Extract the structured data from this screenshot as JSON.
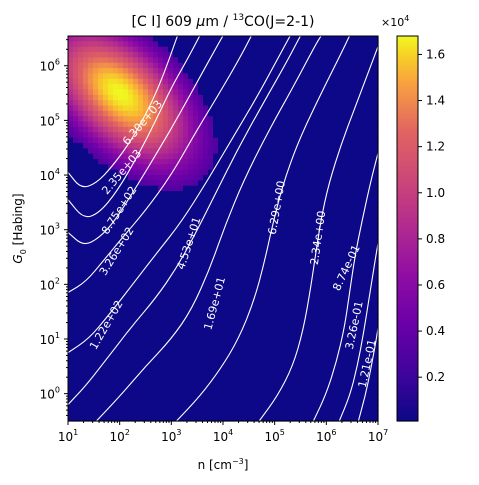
{
  "chart_data": {
    "type": "heatmap",
    "title_parts": [
      "[C I] 609 ",
      "μ",
      "m / ",
      "13",
      "CO(J=2-1)"
    ],
    "xlabel_parts": [
      "n [cm",
      "−3",
      "]"
    ],
    "ylabel_parts": [
      "G",
      "0",
      " [Habing]"
    ],
    "x_scale": "log",
    "y_scale": "log",
    "xlim": [
      10,
      10000000
    ],
    "ylim": [
      0.316,
      3500000
    ],
    "x_ticks": [
      {
        "value": 10,
        "base": "10",
        "exp": "1"
      },
      {
        "value": 100,
        "base": "10",
        "exp": "2"
      },
      {
        "value": 1000,
        "base": "10",
        "exp": "3"
      },
      {
        "value": 10000,
        "base": "10",
        "exp": "4"
      },
      {
        "value": 100000,
        "base": "10",
        "exp": "5"
      },
      {
        "value": 1000000,
        "base": "10",
        "exp": "6"
      },
      {
        "value": 10000000,
        "base": "10",
        "exp": "7"
      }
    ],
    "y_ticks": [
      {
        "value": 1,
        "base": "10",
        "exp": "0"
      },
      {
        "value": 10,
        "base": "10",
        "exp": "1"
      },
      {
        "value": 100,
        "base": "10",
        "exp": "2"
      },
      {
        "value": 1000,
        "base": "10",
        "exp": "3"
      },
      {
        "value": 10000,
        "base": "10",
        "exp": "4"
      },
      {
        "value": 100000,
        "base": "10",
        "exp": "5"
      },
      {
        "value": 1000000,
        "base": "10",
        "exp": "6"
      }
    ],
    "colormap": "plasma",
    "colorbar": {
      "range": [
        0.01,
        1.68
      ],
      "multiplier_parts": [
        "×10",
        "4"
      ],
      "ticks": [
        {
          "value": 0.2,
          "label": "0.2"
        },
        {
          "value": 0.4,
          "label": "0.4"
        },
        {
          "value": 0.6,
          "label": "0.6"
        },
        {
          "value": 0.8,
          "label": "0.8"
        },
        {
          "value": 1.0,
          "label": "1.0"
        },
        {
          "value": 1.2,
          "label": "1.2"
        },
        {
          "value": 1.4,
          "label": "1.4"
        },
        {
          "value": 1.6,
          "label": "1.6"
        }
      ]
    },
    "peak": {
      "log_n": 2.0,
      "log_g0": 5.5,
      "value": 16800
    },
    "contours": [
      {
        "label": "6.30e+03",
        "points": [
          [
            1.0,
            4.05
          ],
          [
            1.25,
            3.75
          ],
          [
            1.55,
            3.85
          ],
          [
            1.85,
            4.15
          ],
          [
            2.2,
            4.6
          ],
          [
            2.5,
            5.1
          ],
          [
            2.75,
            5.6
          ],
          [
            2.95,
            6.1
          ],
          [
            3.12,
            6.55
          ]
        ]
      },
      {
        "label": "2.35e+03",
        "points": [
          [
            1.0,
            3.55
          ],
          [
            1.3,
            3.2
          ],
          [
            1.6,
            3.3
          ],
          [
            1.95,
            3.7
          ],
          [
            2.35,
            4.35
          ],
          [
            2.7,
            5.0
          ],
          [
            3.0,
            5.6
          ],
          [
            3.3,
            6.1
          ],
          [
            3.55,
            6.55
          ]
        ]
      },
      {
        "label": "8.75e+02",
        "points": [
          [
            1.0,
            2.95
          ],
          [
            1.3,
            2.7
          ],
          [
            1.6,
            2.85
          ],
          [
            1.9,
            3.15
          ],
          [
            2.3,
            3.75
          ],
          [
            2.75,
            4.45
          ],
          [
            3.15,
            5.1
          ],
          [
            3.5,
            5.7
          ],
          [
            3.85,
            6.3
          ],
          [
            4.0,
            6.55
          ]
        ]
      },
      {
        "label": "3.26e+02",
        "points": [
          [
            1.0,
            1.85
          ],
          [
            1.35,
            2.05
          ],
          [
            1.7,
            2.45
          ],
          [
            2.05,
            2.85
          ],
          [
            2.5,
            3.35
          ],
          [
            3.0,
            4.0
          ],
          [
            3.45,
            4.75
          ],
          [
            3.9,
            5.45
          ],
          [
            4.3,
            6.1
          ],
          [
            4.55,
            6.55
          ]
        ]
      },
      {
        "label": "1.22e+02",
        "points": [
          [
            1.0,
            0.75
          ],
          [
            1.4,
            1.0
          ],
          [
            1.8,
            1.45
          ],
          [
            2.25,
            2.0
          ],
          [
            2.7,
            2.55
          ],
          [
            3.2,
            3.15
          ],
          [
            3.7,
            3.9
          ],
          [
            4.2,
            4.7
          ],
          [
            4.7,
            5.5
          ],
          [
            5.1,
            6.2
          ],
          [
            5.3,
            6.55
          ]
        ]
      },
      {
        "label": "4.53e+01",
        "points": [
          [
            1.0,
            -0.2
          ],
          [
            1.35,
            0.15
          ],
          [
            1.8,
            0.7
          ],
          [
            2.25,
            1.25
          ],
          [
            2.7,
            1.75
          ],
          [
            3.1,
            2.3
          ],
          [
            3.45,
            2.9
          ],
          [
            3.85,
            3.65
          ],
          [
            4.3,
            4.5
          ],
          [
            4.8,
            5.35
          ],
          [
            5.25,
            6.1
          ],
          [
            5.5,
            6.55
          ]
        ]
      },
      {
        "label": "1.69e+01",
        "points": [
          [
            1.55,
            -0.5
          ],
          [
            2.0,
            -0.05
          ],
          [
            2.5,
            0.5
          ],
          [
            3.0,
            1.0
          ],
          [
            3.4,
            1.55
          ],
          [
            3.75,
            2.3
          ],
          [
            4.05,
            3.1
          ],
          [
            4.4,
            3.9
          ],
          [
            4.85,
            4.75
          ],
          [
            5.35,
            5.6
          ],
          [
            5.8,
            6.4
          ],
          [
            5.9,
            6.55
          ]
        ]
      },
      {
        "label": "6.29e+00",
        "points": [
          [
            3.1,
            -0.5
          ],
          [
            3.55,
            -0.05
          ],
          [
            3.95,
            0.45
          ],
          [
            4.3,
            1.0
          ],
          [
            4.6,
            1.7
          ],
          [
            4.8,
            2.4
          ],
          [
            4.95,
            3.05
          ],
          [
            5.15,
            3.8
          ],
          [
            5.45,
            4.6
          ],
          [
            5.85,
            5.4
          ],
          [
            6.3,
            6.25
          ],
          [
            6.45,
            6.55
          ]
        ]
      },
      {
        "label": "2.34e+00",
        "points": [
          [
            4.7,
            -0.5
          ],
          [
            5.05,
            -0.05
          ],
          [
            5.35,
            0.5
          ],
          [
            5.55,
            1.15
          ],
          [
            5.7,
            1.95
          ],
          [
            5.8,
            2.6
          ],
          [
            5.9,
            3.2
          ],
          [
            6.05,
            3.85
          ],
          [
            6.3,
            4.6
          ],
          [
            6.6,
            5.35
          ],
          [
            6.9,
            6.1
          ],
          [
            7.0,
            6.35
          ]
        ]
      },
      {
        "label": "8.74e-01",
        "points": [
          [
            5.75,
            -0.5
          ],
          [
            6.0,
            0.0
          ],
          [
            6.2,
            0.6
          ],
          [
            6.35,
            1.2
          ],
          [
            6.45,
            1.85
          ],
          [
            6.55,
            2.5
          ],
          [
            6.7,
            3.2
          ],
          [
            6.85,
            3.85
          ],
          [
            7.0,
            4.4
          ]
        ]
      },
      {
        "label": "3.26e-01",
        "points": [
          [
            6.25,
            -0.5
          ],
          [
            6.45,
            -0.05
          ],
          [
            6.6,
            0.5
          ],
          [
            6.72,
            1.1
          ],
          [
            6.82,
            1.7
          ],
          [
            6.92,
            2.3
          ],
          [
            7.0,
            2.75
          ]
        ]
      },
      {
        "label": "1.21e-01",
        "points": [
          [
            6.62,
            -0.5
          ],
          [
            6.75,
            -0.05
          ],
          [
            6.85,
            0.4
          ],
          [
            6.95,
            0.9
          ],
          [
            7.0,
            1.2
          ]
        ]
      }
    ],
    "contour_labels": [
      {
        "label": "6.30e+03",
        "at": [
          2.45,
          4.95
        ],
        "angle": -50
      },
      {
        "label": "2.35e+03",
        "at": [
          2.05,
          4.05
        ],
        "angle": -50
      },
      {
        "label": "8.75e+02",
        "at": [
          2.0,
          3.35
        ],
        "angle": -57
      },
      {
        "label": "3.26e+02",
        "at": [
          1.95,
          2.6
        ],
        "angle": -58
      },
      {
        "label": "1.22e+02",
        "at": [
          1.75,
          1.25
        ],
        "angle": -60
      },
      {
        "label": "4.53e+01",
        "at": [
          3.35,
          2.75
        ],
        "angle": -72
      },
      {
        "label": "1.69e+01",
        "at": [
          3.85,
          1.65
        ],
        "angle": -75
      },
      {
        "label": "6.29e+00",
        "at": [
          5.05,
          3.4
        ],
        "angle": -80
      },
      {
        "label": "2.34e+00",
        "at": [
          5.85,
          2.85
        ],
        "angle": -82
      },
      {
        "label": "8.74e-01",
        "at": [
          6.4,
          2.3
        ],
        "angle": -65
      },
      {
        "label": "3.26e-01",
        "at": [
          6.55,
          1.25
        ],
        "angle": -78
      },
      {
        "label": "1.21e-01",
        "at": [
          6.8,
          0.55
        ],
        "angle": -78
      }
    ]
  }
}
